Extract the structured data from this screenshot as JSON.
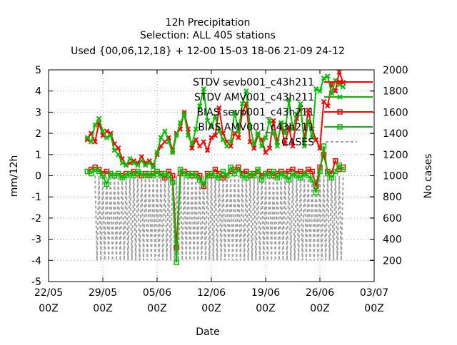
{
  "chart_data": {
    "type": "line",
    "title_lines": [
      "12h Precipitation",
      "Selection: ALL    405 stations",
      "Used {00,06,12,18} + 12-00 15-03 18-06 21-09 24-12"
    ],
    "xlabel": "Date",
    "ylabel": "mm/12h",
    "y2label": "No cases",
    "x_ticks": [
      {
        "day": 0,
        "label1": "22/05",
        "label2": "00Z"
      },
      {
        "day": 7,
        "label1": "29/05",
        "label2": "00Z"
      },
      {
        "day": 14,
        "label1": "05/06",
        "label2": "00Z"
      },
      {
        "day": 21,
        "label1": "12/06",
        "label2": "00Z"
      },
      {
        "day": 28,
        "label1": "19/06",
        "label2": "00Z"
      },
      {
        "day": 35,
        "label1": "26/06",
        "label2": "00Z"
      },
      {
        "day": 42,
        "label1": "03/07",
        "label2": "00Z"
      }
    ],
    "xlim": [
      0,
      42
    ],
    "ylim": [
      -5,
      5
    ],
    "y_ticks": [
      -5,
      -4,
      -3,
      -2,
      -1,
      0,
      1,
      2,
      3,
      4,
      5
    ],
    "y2lim": [
      0,
      2000
    ],
    "y2_ticks": [
      200,
      400,
      600,
      800,
      1000,
      1200,
      1400,
      1600,
      1800,
      2000
    ],
    "grid": true,
    "legend_position": "top-right",
    "series": [
      {
        "name": "STDV sevb001_c43h211",
        "color": "#ff0000",
        "marker": "x",
        "axis": "y1",
        "points": [
          [
            5,
            1.7
          ],
          [
            5.5,
            2.0
          ],
          [
            6,
            1.6
          ],
          [
            6.5,
            2.5
          ],
          [
            7,
            1.9
          ],
          [
            7.5,
            2.1
          ],
          [
            8,
            2.0
          ],
          [
            8.5,
            1.5
          ],
          [
            9,
            1.3
          ],
          [
            9.5,
            0.8
          ],
          [
            10,
            0.5
          ],
          [
            10.5,
            0.6
          ],
          [
            11,
            0.7
          ],
          [
            11.5,
            0.6
          ],
          [
            12,
            0.9
          ],
          [
            12.5,
            0.6
          ],
          [
            13,
            0.7
          ],
          [
            13.5,
            0.5
          ],
          [
            14,
            1.0
          ],
          [
            14.5,
            1.4
          ],
          [
            15,
            1.6
          ],
          [
            15.5,
            1.8
          ],
          [
            16,
            1.2
          ],
          [
            16.5,
            2.0
          ],
          [
            17,
            2.2
          ],
          [
            17.5,
            3.0
          ],
          [
            18,
            2.2
          ],
          [
            18.5,
            1.3
          ],
          [
            19,
            1.7
          ],
          [
            19.5,
            1.4
          ],
          [
            20,
            1.6
          ],
          [
            20.5,
            1.2
          ],
          [
            21,
            1.8
          ],
          [
            21.5,
            1.9
          ],
          [
            22,
            3.2
          ],
          [
            22.5,
            2.0
          ],
          [
            23,
            1.6
          ],
          [
            23.5,
            1.4
          ],
          [
            24,
            2.0
          ],
          [
            24.5,
            1.8
          ],
          [
            25,
            3.0
          ],
          [
            25.5,
            3.4
          ],
          [
            26,
            1.6
          ],
          [
            26.5,
            1.3
          ],
          [
            27,
            1.9
          ],
          [
            27.5,
            1.7
          ],
          [
            28,
            1.1
          ],
          [
            28.5,
            1.3
          ],
          [
            29,
            2.6
          ],
          [
            29.5,
            1.6
          ],
          [
            30,
            2.4
          ],
          [
            30.5,
            1.5
          ],
          [
            31,
            2.3
          ],
          [
            31.5,
            1.4
          ],
          [
            32,
            2.7
          ],
          [
            32.5,
            3.2
          ],
          [
            33,
            1.7
          ],
          [
            33.5,
            3.1
          ],
          [
            34,
            2.2
          ],
          [
            34.5,
            1.7
          ],
          [
            35,
            1.3
          ],
          [
            35.5,
            3.5
          ],
          [
            36,
            3.3
          ],
          [
            36.5,
            4.3
          ],
          [
            37,
            4.0
          ],
          [
            37.5,
            4.9
          ],
          [
            38,
            4.4
          ]
        ]
      },
      {
        "name": "STDV AMV001_c43h211",
        "color": "#00c000",
        "marker": "x",
        "axis": "y1",
        "points": [
          [
            5,
            1.8
          ],
          [
            5.5,
            1.6
          ],
          [
            6,
            2.4
          ],
          [
            6.5,
            2.7
          ],
          [
            7,
            2.1
          ],
          [
            7.5,
            1.8
          ],
          [
            8,
            1.9
          ],
          [
            8.5,
            1.2
          ],
          [
            9,
            1.0
          ],
          [
            9.5,
            0.6
          ],
          [
            10,
            0.5
          ],
          [
            10.5,
            0.8
          ],
          [
            11,
            0.6
          ],
          [
            11.5,
            0.5
          ],
          [
            12,
            0.7
          ],
          [
            12.5,
            0.5
          ],
          [
            13,
            0.6
          ],
          [
            13.5,
            0.4
          ],
          [
            14,
            1.1
          ],
          [
            14.5,
            1.8
          ],
          [
            15,
            2.1
          ],
          [
            15.5,
            1.6
          ],
          [
            16,
            1.1
          ],
          [
            16.5,
            1.9
          ],
          [
            17,
            2.5
          ],
          [
            17.5,
            2.9
          ],
          [
            18,
            1.9
          ],
          [
            18.5,
            1.5
          ],
          [
            19,
            2.2
          ],
          [
            19.5,
            3.3
          ],
          [
            20,
            4.1
          ],
          [
            20.5,
            2.6
          ],
          [
            21,
            2.3
          ],
          [
            21.5,
            2.8
          ],
          [
            22,
            2.1
          ],
          [
            22.5,
            1.7
          ],
          [
            23,
            1.4
          ],
          [
            23.5,
            1.6
          ],
          [
            24,
            3.0
          ],
          [
            24.5,
            2.1
          ],
          [
            25,
            3.4
          ],
          [
            25.5,
            4.0
          ],
          [
            26,
            2.3
          ],
          [
            26.5,
            1.5
          ],
          [
            27,
            2.0
          ],
          [
            27.5,
            1.4
          ],
          [
            28,
            1.8
          ],
          [
            28.5,
            2.6
          ],
          [
            29,
            2.0
          ],
          [
            29.5,
            1.4
          ],
          [
            30,
            2.5
          ],
          [
            30.5,
            2.0
          ],
          [
            31,
            3.6
          ],
          [
            31.5,
            2.2
          ],
          [
            32,
            2.9
          ],
          [
            32.5,
            3.4
          ],
          [
            33,
            1.4
          ],
          [
            33.5,
            2.6
          ],
          [
            34,
            1.8
          ],
          [
            34.5,
            4.1
          ],
          [
            35,
            4.0
          ],
          [
            35.5,
            4.6
          ],
          [
            36,
            4.7
          ],
          [
            36.5,
            3.9
          ],
          [
            37,
            4.5
          ],
          [
            37.5,
            4.3
          ],
          [
            38,
            4.2
          ]
        ]
      },
      {
        "name": "BIAS sevb001_c43h211",
        "color": "#ff0000",
        "marker": "square",
        "axis": "y1",
        "points": [
          [
            5,
            0.2
          ],
          [
            5.5,
            0.3
          ],
          [
            6,
            0.4
          ],
          [
            6.5,
            0.3
          ],
          [
            7,
            0.1
          ],
          [
            7.5,
            0.2
          ],
          [
            8,
            0.1
          ],
          [
            8.5,
            0.0
          ],
          [
            9,
            0.1
          ],
          [
            9.5,
            0.0
          ],
          [
            10,
            0.1
          ],
          [
            10.5,
            0.1
          ],
          [
            11,
            0.2
          ],
          [
            11.5,
            0.1
          ],
          [
            12,
            0.0
          ],
          [
            12.5,
            0.1
          ],
          [
            13,
            0.0
          ],
          [
            13.5,
            0.1
          ],
          [
            14,
            0.2
          ],
          [
            14.5,
            0.1
          ],
          [
            15,
            -0.1
          ],
          [
            15.5,
            0.2
          ],
          [
            16,
            0.0
          ],
          [
            16.5,
            -3.4
          ],
          [
            17,
            0.1
          ],
          [
            17.5,
            0.2
          ],
          [
            18,
            0.1
          ],
          [
            18.5,
            0.0
          ],
          [
            19,
            0.1
          ],
          [
            19.5,
            0.0
          ],
          [
            20,
            -0.5
          ],
          [
            20.5,
            0.1
          ],
          [
            21,
            0.0
          ],
          [
            21.5,
            0.3
          ],
          [
            22,
            0.1
          ],
          [
            22.5,
            -0.1
          ],
          [
            23,
            0.0
          ],
          [
            23.5,
            0.2
          ],
          [
            24,
            0.3
          ],
          [
            24.5,
            0.4
          ],
          [
            25,
            0.1
          ],
          [
            25.5,
            0.2
          ],
          [
            26,
            0.0
          ],
          [
            26.5,
            0.1
          ],
          [
            27,
            0.2
          ],
          [
            27.5,
            0.0
          ],
          [
            28,
            0.1
          ],
          [
            28.5,
            0.2
          ],
          [
            29,
            0.0
          ],
          [
            29.5,
            0.1
          ],
          [
            30,
            0.2
          ],
          [
            30.5,
            0.1
          ],
          [
            31,
            0.2
          ],
          [
            31.5,
            0.3
          ],
          [
            32,
            0.1
          ],
          [
            32.5,
            0.2
          ],
          [
            33,
            0.1
          ],
          [
            33.5,
            0.3
          ],
          [
            34,
            0.2
          ],
          [
            34.5,
            -0.5
          ],
          [
            35,
            0.4
          ],
          [
            35.5,
            1.0
          ],
          [
            36,
            0.2
          ],
          [
            36.5,
            0.1
          ],
          [
            37,
            0.7
          ],
          [
            37.5,
            0.3
          ],
          [
            38,
            0.4
          ]
        ]
      },
      {
        "name": "BIAS AMV001_c43h211",
        "color": "#00c000",
        "marker": "square",
        "axis": "y1",
        "points": [
          [
            5,
            0.2
          ],
          [
            5.5,
            0.1
          ],
          [
            6,
            0.3
          ],
          [
            6.5,
            0.2
          ],
          [
            7,
            0.0
          ],
          [
            7.5,
            -0.4
          ],
          [
            8,
            0.1
          ],
          [
            8.5,
            0.0
          ],
          [
            9,
            0.1
          ],
          [
            9.5,
            -0.1
          ],
          [
            10,
            0.0
          ],
          [
            10.5,
            0.1
          ],
          [
            11,
            0.0
          ],
          [
            11.5,
            0.2
          ],
          [
            12,
            0.1
          ],
          [
            12.5,
            0.0
          ],
          [
            13,
            0.1
          ],
          [
            13.5,
            0.0
          ],
          [
            14,
            0.2
          ],
          [
            14.5,
            0.0
          ],
          [
            15,
            0.1
          ],
          [
            15.5,
            0.0
          ],
          [
            16,
            -0.3
          ],
          [
            16.5,
            -4.1
          ],
          [
            17,
            0.3
          ],
          [
            17.5,
            0.1
          ],
          [
            18,
            0.0
          ],
          [
            18.5,
            0.1
          ],
          [
            19,
            0.0
          ],
          [
            19.5,
            -0.2
          ],
          [
            20,
            -0.4
          ],
          [
            20.5,
            0.0
          ],
          [
            21,
            0.1
          ],
          [
            21.5,
            0.0
          ],
          [
            22,
            -0.1
          ],
          [
            22.5,
            0.2
          ],
          [
            23,
            0.0
          ],
          [
            23.5,
            0.4
          ],
          [
            24,
            0.1
          ],
          [
            24.5,
            0.3
          ],
          [
            25,
            0.0
          ],
          [
            25.5,
            -0.1
          ],
          [
            26,
            0.1
          ],
          [
            26.5,
            0.0
          ],
          [
            27,
            0.3
          ],
          [
            27.5,
            -0.2
          ],
          [
            28,
            0.1
          ],
          [
            28.5,
            0.0
          ],
          [
            29,
            0.2
          ],
          [
            29.5,
            -0.1
          ],
          [
            30,
            0.1
          ],
          [
            30.5,
            0.0
          ],
          [
            31,
            -0.2
          ],
          [
            31.5,
            0.1
          ],
          [
            32,
            0.0
          ],
          [
            32.5,
            -0.1
          ],
          [
            33,
            0.1
          ],
          [
            33.5,
            0.0
          ],
          [
            34,
            -0.2
          ],
          [
            34.5,
            -0.8
          ],
          [
            35,
            0.2
          ],
          [
            35.5,
            1.4
          ],
          [
            36,
            0.1
          ],
          [
            36.5,
            -0.1
          ],
          [
            37,
            0.2
          ],
          [
            37.5,
            0.5
          ],
          [
            38,
            0.3
          ]
        ]
      },
      {
        "name": "CASES",
        "color": "#a0a0a0",
        "marker": "none",
        "dash": true,
        "axis": "y2",
        "style": "oscillating",
        "day_range": [
          6,
          38
        ],
        "step_days": 0.25,
        "low_cases": 200,
        "high_cases": 1000,
        "dips": [
          [
            16.5,
            20
          ],
          [
            21,
            130
          ],
          [
            25,
            120
          ],
          [
            35,
            20
          ]
        ]
      }
    ]
  }
}
